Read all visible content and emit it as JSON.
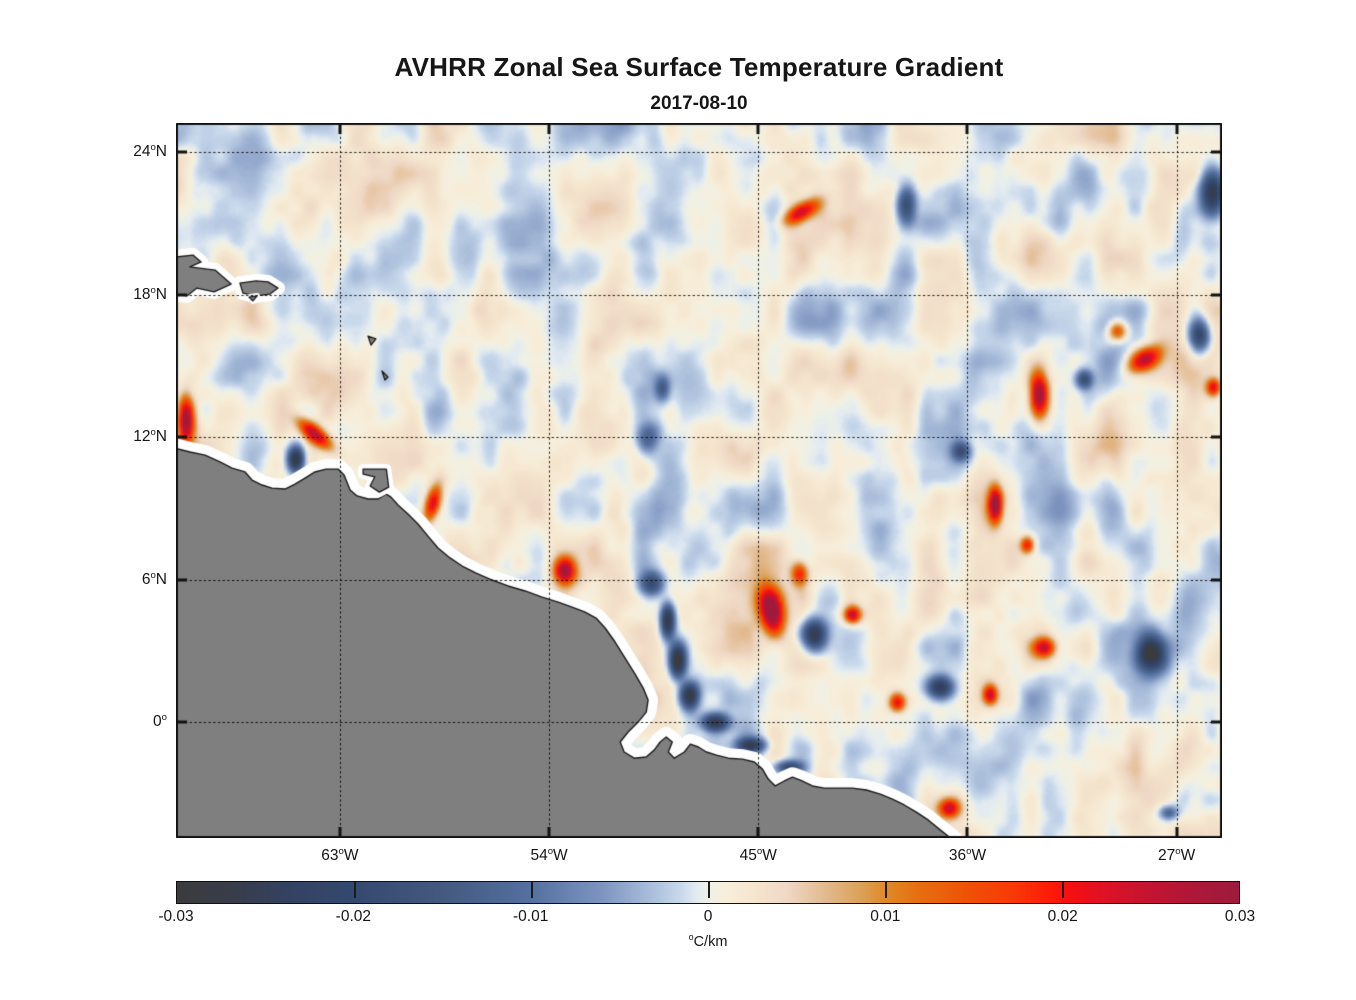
{
  "header": {
    "title": "AVHRR Zonal Sea Surface Temperature Gradient",
    "subtitle": "2017-08-10"
  },
  "chart_data": {
    "type": "heatmap",
    "title": "AVHRR Zonal Sea Surface Temperature Gradient",
    "subtitle": "2017-08-10",
    "lon_range": [
      -70.05,
      -25.05
    ],
    "lat_range": [
      -4.88,
      25.22
    ],
    "grid": "dotted-black-over-data",
    "x_axis": {
      "ticks": [
        {
          "value": -63,
          "label": "63°W"
        },
        {
          "value": -54,
          "label": "54°W"
        },
        {
          "value": -45,
          "label": "45°W"
        },
        {
          "value": -36,
          "label": "36°W"
        },
        {
          "value": -27,
          "label": "27°W"
        }
      ]
    },
    "y_axis": {
      "ticks": [
        {
          "value": 24,
          "label": "24°N"
        },
        {
          "value": 18,
          "label": "18°N"
        },
        {
          "value": 12,
          "label": "12°N"
        },
        {
          "value": 6,
          "label": "6°N"
        },
        {
          "value": 0,
          "label": "0°"
        }
      ]
    },
    "colorbar": {
      "range": [
        -0.03,
        0.03
      ],
      "unit": "°C/km",
      "tick_values": [
        -0.03,
        -0.02,
        -0.01,
        0,
        0.01,
        0.02,
        0.03
      ],
      "tick_labels": [
        "-0.03",
        "-0.02",
        "-0.01",
        "0",
        "0.01",
        "0.02",
        "0.03"
      ],
      "stops": [
        {
          "t": 0.0,
          "c": "#3b3b3d"
        },
        {
          "t": 0.055,
          "c": "#373d4a"
        },
        {
          "t": 0.11,
          "c": "#344263"
        },
        {
          "t": 0.167,
          "c": "#33496f"
        },
        {
          "t": 0.25,
          "c": "#43597f"
        },
        {
          "t": 0.333,
          "c": "#5470a0"
        },
        {
          "t": 0.4,
          "c": "#7d94bf"
        },
        {
          "t": 0.445,
          "c": "#a8bcda"
        },
        {
          "t": 0.475,
          "c": "#c9d9ec"
        },
        {
          "t": 0.49,
          "c": "#e4ebf2"
        },
        {
          "t": 0.497,
          "c": "#ebf0ea"
        },
        {
          "t": 0.505,
          "c": "#f2f0e4"
        },
        {
          "t": 0.515,
          "c": "#f7efdc"
        },
        {
          "t": 0.545,
          "c": "#f5e5cd"
        },
        {
          "t": 0.575,
          "c": "#efd8c5"
        },
        {
          "t": 0.61,
          "c": "#e2ba8e"
        },
        {
          "t": 0.645,
          "c": "#dba057"
        },
        {
          "t": 0.667,
          "c": "#df8a26"
        },
        {
          "t": 0.7,
          "c": "#e66d0f"
        },
        {
          "t": 0.745,
          "c": "#ef5106"
        },
        {
          "t": 0.79,
          "c": "#f93706"
        },
        {
          "t": 0.825,
          "c": "#fe1807"
        },
        {
          "t": 0.845,
          "c": "#f30e13"
        },
        {
          "t": 0.875,
          "c": "#dd1226"
        },
        {
          "t": 0.92,
          "c": "#c11432"
        },
        {
          "t": 0.965,
          "c": "#ab1839"
        },
        {
          "t": 1.0,
          "c": "#9d1b3d"
        }
      ]
    },
    "land": {
      "color": "#7f7f7f",
      "outline": "#1a1a1a",
      "nodata_halo": "#ffffff",
      "mainland": [
        [
          -70.3,
          11.58
        ],
        [
          -69.45,
          11.37
        ],
        [
          -68.8,
          11.24
        ],
        [
          -68.16,
          10.95
        ],
        [
          -67.64,
          10.69
        ],
        [
          -67.08,
          10.53
        ],
        [
          -66.78,
          10.19
        ],
        [
          -66.35,
          9.98
        ],
        [
          -65.92,
          9.85
        ],
        [
          -65.36,
          9.81
        ],
        [
          -64.93,
          10.02
        ],
        [
          -64.5,
          10.27
        ],
        [
          -64.07,
          10.53
        ],
        [
          -63.59,
          10.65
        ],
        [
          -63.08,
          10.65
        ],
        [
          -62.82,
          10.4
        ],
        [
          -62.56,
          9.77
        ],
        [
          -62.26,
          9.52
        ],
        [
          -61.79,
          9.39
        ],
        [
          -61.36,
          9.39
        ],
        [
          -61.01,
          9.6
        ],
        [
          -60.8,
          9.47
        ],
        [
          -60.5,
          9.14
        ],
        [
          -60.07,
          8.76
        ],
        [
          -59.64,
          8.34
        ],
        [
          -59.21,
          7.83
        ],
        [
          -58.78,
          7.33
        ],
        [
          -58.26,
          6.91
        ],
        [
          -57.74,
          6.57
        ],
        [
          -57.14,
          6.27
        ],
        [
          -56.45,
          5.98
        ],
        [
          -55.77,
          5.73
        ],
        [
          -55.03,
          5.52
        ],
        [
          -54.3,
          5.26
        ],
        [
          -53.61,
          5.05
        ],
        [
          -53.01,
          4.84
        ],
        [
          -52.45,
          4.63
        ],
        [
          -51.98,
          4.38
        ],
        [
          -51.59,
          3.96
        ],
        [
          -51.16,
          3.37
        ],
        [
          -50.73,
          2.69
        ],
        [
          -50.3,
          2.02
        ],
        [
          -49.95,
          1.43
        ],
        [
          -49.74,
          0.93
        ],
        [
          -49.82,
          0.42
        ],
        [
          -50.17,
          0.0
        ],
        [
          -50.6,
          -0.42
        ],
        [
          -50.94,
          -0.84
        ],
        [
          -50.77,
          -1.26
        ],
        [
          -50.34,
          -1.52
        ],
        [
          -49.82,
          -1.47
        ],
        [
          -49.48,
          -1.18
        ],
        [
          -49.22,
          -0.84
        ],
        [
          -48.96,
          -0.63
        ],
        [
          -48.7,
          -0.84
        ],
        [
          -48.87,
          -1.26
        ],
        [
          -48.61,
          -1.52
        ],
        [
          -48.18,
          -1.26
        ],
        [
          -47.92,
          -0.93
        ],
        [
          -47.58,
          -1.05
        ],
        [
          -47.23,
          -1.26
        ],
        [
          -46.8,
          -1.39
        ],
        [
          -46.29,
          -1.52
        ],
        [
          -45.68,
          -1.56
        ],
        [
          -45.17,
          -1.68
        ],
        [
          -44.82,
          -1.98
        ],
        [
          -44.57,
          -2.4
        ],
        [
          -44.27,
          -2.69
        ],
        [
          -43.88,
          -2.48
        ],
        [
          -43.53,
          -2.32
        ],
        [
          -43.19,
          -2.44
        ],
        [
          -42.67,
          -2.69
        ],
        [
          -42.16,
          -2.78
        ],
        [
          -41.55,
          -2.78
        ],
        [
          -40.95,
          -2.78
        ],
        [
          -40.35,
          -2.86
        ],
        [
          -39.75,
          -3.03
        ],
        [
          -39.23,
          -3.24
        ],
        [
          -38.72,
          -3.49
        ],
        [
          -38.2,
          -3.79
        ],
        [
          -37.68,
          -4.13
        ],
        [
          -37.16,
          -4.55
        ],
        [
          -36.73,
          -4.88
        ],
        [
          -36.2,
          -5.4
        ],
        [
          -35.8,
          -6.5
        ],
        [
          -71.0,
          -6.5
        ]
      ],
      "islands": [
        {
          "name": "trinidad",
          "halo": 10,
          "pts": [
            [
              -62.0,
              10.65
            ],
            [
              -61.0,
              10.65
            ],
            [
              -60.9,
              9.89
            ],
            [
              -61.3,
              9.68
            ],
            [
              -61.7,
              9.94
            ],
            [
              -61.5,
              10.32
            ],
            [
              -62.0,
              10.44
            ]
          ]
        },
        {
          "name": "hispaniola-east",
          "halo": 14,
          "pts": [
            [
              -70.4,
              19.54
            ],
            [
              -69.32,
              19.66
            ],
            [
              -68.97,
              19.37
            ],
            [
              -69.45,
              19.16
            ],
            [
              -68.37,
              19.03
            ],
            [
              -67.68,
              18.44
            ],
            [
              -68.41,
              18.11
            ],
            [
              -69.15,
              18.27
            ],
            [
              -69.58,
              17.94
            ],
            [
              -70.4,
              18.06
            ]
          ]
        },
        {
          "name": "puerto-rico",
          "halo": 14,
          "pts": [
            [
              -67.3,
              18.48
            ],
            [
              -66.61,
              18.57
            ],
            [
              -66.09,
              18.53
            ],
            [
              -65.66,
              18.27
            ],
            [
              -66.0,
              18.02
            ],
            [
              -66.61,
              17.94
            ],
            [
              -67.17,
              18.06
            ]
          ]
        },
        {
          "name": "islet-south-of-puerto-rico",
          "halo": 6,
          "pts": [
            [
              -66.91,
              17.89
            ],
            [
              -66.56,
              17.94
            ],
            [
              -66.74,
              17.73
            ]
          ]
        },
        {
          "name": "small-antille-north",
          "halo": 0,
          "pts": [
            [
              -61.79,
              16.25
            ],
            [
              -61.45,
              16.13
            ],
            [
              -61.66,
              15.87
            ]
          ]
        },
        {
          "name": "small-antille-south",
          "halo": 0,
          "pts": [
            [
              -61.19,
              14.78
            ],
            [
              -60.93,
              14.53
            ],
            [
              -61.06,
              14.4
            ]
          ]
        }
      ]
    },
    "features": [
      {
        "lon": -69.62,
        "lat": 12.72,
        "amp": 0.03,
        "rx": 0.35,
        "ry": 1.0,
        "rot": 0
      },
      {
        "lon": -64.07,
        "lat": 12.08,
        "amp": 0.026,
        "rx": 0.9,
        "ry": 0.35,
        "rot": 40
      },
      {
        "lon": -64.89,
        "lat": 11.03,
        "amp": -0.03,
        "rx": 0.35,
        "ry": 0.55,
        "rot": 0
      },
      {
        "lon": -59.0,
        "lat": 9.14,
        "amp": 0.024,
        "rx": 0.33,
        "ry": 0.8,
        "rot": 15
      },
      {
        "lon": -53.31,
        "lat": 6.32,
        "amp": 0.027,
        "rx": 0.45,
        "ry": 0.55,
        "rot": 0
      },
      {
        "lon": -49.57,
        "lat": 5.77,
        "amp": -0.018,
        "rx": 0.5,
        "ry": 0.5,
        "rot": 0
      },
      {
        "lon": -48.88,
        "lat": 4.21,
        "amp": -0.03,
        "rx": 0.3,
        "ry": 0.7,
        "rot": 0
      },
      {
        "lon": -48.45,
        "lat": 2.53,
        "amp": -0.034,
        "rx": 0.35,
        "ry": 0.7,
        "rot": 0
      },
      {
        "lon": -47.94,
        "lat": 1.05,
        "amp": -0.03,
        "rx": 0.4,
        "ry": 0.55,
        "rot": 0
      },
      {
        "lon": -46.82,
        "lat": -0.08,
        "amp": -0.026,
        "rx": 0.55,
        "ry": 0.35,
        "rot": 0
      },
      {
        "lon": -45.27,
        "lat": -1.05,
        "amp": -0.023,
        "rx": 0.6,
        "ry": 0.3,
        "rot": 0
      },
      {
        "lon": -43.63,
        "lat": -1.98,
        "amp": -0.021,
        "rx": 0.55,
        "ry": 0.27,
        "rot": 0
      },
      {
        "lon": -44.41,
        "lat": 4.63,
        "amp": 0.032,
        "rx": 0.5,
        "ry": 0.95,
        "rot": -10
      },
      {
        "lon": -43.2,
        "lat": 6.19,
        "amp": 0.018,
        "rx": 0.35,
        "ry": 0.5,
        "rot": 0
      },
      {
        "lon": -42.56,
        "lat": 3.62,
        "amp": -0.027,
        "rx": 0.5,
        "ry": 0.6,
        "rot": 0
      },
      {
        "lon": -40.92,
        "lat": 4.46,
        "amp": 0.026,
        "rx": 0.35,
        "ry": 0.35,
        "rot": 0
      },
      {
        "lon": -38.99,
        "lat": 0.76,
        "amp": 0.022,
        "rx": 0.35,
        "ry": 0.4,
        "rot": 0
      },
      {
        "lon": -37.14,
        "lat": 1.39,
        "amp": -0.025,
        "rx": 0.55,
        "ry": 0.45,
        "rot": 0
      },
      {
        "lon": -34.77,
        "lat": 9.09,
        "amp": 0.03,
        "rx": 0.3,
        "ry": 0.75,
        "rot": 0
      },
      {
        "lon": -33.39,
        "lat": 7.41,
        "amp": 0.02,
        "rx": 0.28,
        "ry": 0.35,
        "rot": 0
      },
      {
        "lon": -32.88,
        "lat": 13.73,
        "amp": 0.032,
        "rx": 0.4,
        "ry": 0.95,
        "rot": 0
      },
      {
        "lon": -28.36,
        "lat": 15.24,
        "amp": 0.026,
        "rx": 0.75,
        "ry": 0.45,
        "rot": -30
      },
      {
        "lon": -29.52,
        "lat": 16.42,
        "amp": 0.018,
        "rx": 0.4,
        "ry": 0.4,
        "rot": 0
      },
      {
        "lon": -28.06,
        "lat": 2.78,
        "amp": -0.03,
        "rx": 0.6,
        "ry": 0.75,
        "rot": 0
      },
      {
        "lon": -32.66,
        "lat": 3.07,
        "amp": 0.023,
        "rx": 0.45,
        "ry": 0.4,
        "rot": 0
      },
      {
        "lon": -34.99,
        "lat": 1.09,
        "amp": 0.023,
        "rx": 0.3,
        "ry": 0.4,
        "rot": 0
      },
      {
        "lon": -25.43,
        "lat": 22.32,
        "amp": -0.03,
        "rx": 0.5,
        "ry": 0.95,
        "rot": 0
      },
      {
        "lon": -38.6,
        "lat": 21.73,
        "amp": -0.021,
        "rx": 0.4,
        "ry": 0.8,
        "rot": 0
      },
      {
        "lon": -43.12,
        "lat": 21.47,
        "amp": 0.023,
        "rx": 0.8,
        "ry": 0.35,
        "rot": -30
      },
      {
        "lon": -25.99,
        "lat": 16.25,
        "amp": -0.025,
        "rx": 0.45,
        "ry": 0.7,
        "rot": 0
      },
      {
        "lon": -25.38,
        "lat": 14.06,
        "amp": 0.021,
        "rx": 0.3,
        "ry": 0.35,
        "rot": 0
      },
      {
        "lon": -30.94,
        "lat": 14.4,
        "amp": -0.018,
        "rx": 0.35,
        "ry": 0.38,
        "rot": 0
      },
      {
        "lon": -36.23,
        "lat": 11.37,
        "amp": -0.016,
        "rx": 0.38,
        "ry": 0.38,
        "rot": 0
      },
      {
        "lon": -36.75,
        "lat": -3.71,
        "amp": 0.023,
        "rx": 0.45,
        "ry": 0.4,
        "rot": 0
      },
      {
        "lon": -27.3,
        "lat": -3.9,
        "amp": -0.014,
        "rx": 0.4,
        "ry": 0.3,
        "rot": 0
      },
      {
        "lon": -49.74,
        "lat": 11.83,
        "amp": -0.016,
        "rx": 0.5,
        "ry": 0.65,
        "rot": 0
      },
      {
        "lon": -49.1,
        "lat": 14.02,
        "amp": -0.013,
        "rx": 0.3,
        "ry": 0.5,
        "rot": 0
      }
    ],
    "noise": {
      "bias": 0.0004,
      "octaves": [
        {
          "wx": 72,
          "wy": 64,
          "amp": 0.0034,
          "ox": 11,
          "oy": 5
        },
        {
          "wx": 26,
          "wy": 48,
          "amp": 0.0036,
          "ox": 41,
          "oy": 71
        },
        {
          "wx": 15,
          "wy": 17,
          "amp": 0.0015,
          "ox": 97,
          "oy": 13
        }
      ]
    }
  }
}
